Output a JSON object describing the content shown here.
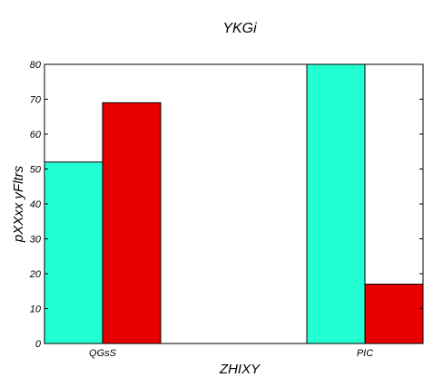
{
  "chart_data": {
    "type": "bar",
    "title": "YKGi",
    "xlabel": "ZHIXY",
    "ylabel": "pXXxx yFltrs",
    "categories": [
      "QGsS",
      "PIC"
    ],
    "series": [
      {
        "values": [
          52,
          80
        ],
        "color": "#22ffd2"
      },
      {
        "values": [
          69,
          17
        ],
        "color": "#e80000"
      }
    ],
    "ylim": [
      0,
      80
    ],
    "yticks": [
      0,
      10,
      20,
      30,
      40,
      50,
      60,
      70,
      80
    ],
    "grid": false,
    "legend": "none"
  }
}
